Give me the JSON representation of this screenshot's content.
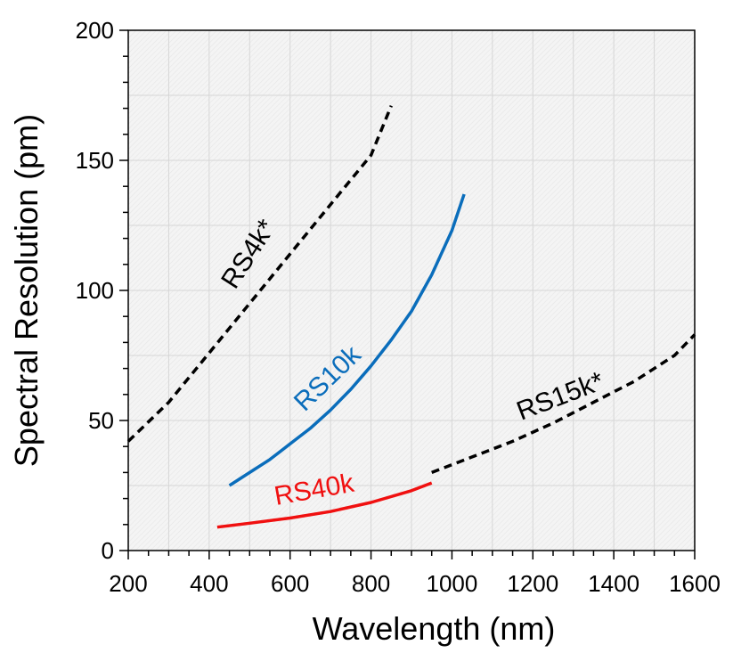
{
  "chart_data": {
    "type": "line",
    "title": "",
    "xlabel": "Wavelength (nm)",
    "ylabel": "Spectral Resolution (pm)",
    "xlim": [
      200,
      1600
    ],
    "ylim": [
      0,
      200
    ],
    "xticks": [
      200,
      400,
      600,
      800,
      1000,
      1200,
      1400,
      1600
    ],
    "xtick_labels": [
      "200",
      "400",
      "600",
      "800",
      "1000",
      "1200",
      "1400",
      "1600"
    ],
    "yticks": [
      0,
      50,
      100,
      150,
      200
    ],
    "ytick_labels": [
      "0",
      "50",
      "100",
      "150",
      "200"
    ],
    "grid": true,
    "legend": "none",
    "plot_background": "#f4f4f4",
    "series": [
      {
        "name": "RS4k*",
        "color": "#000000",
        "dashed": true,
        "x": [
          200,
          300,
          400,
          500,
          600,
          700,
          800,
          850
        ],
        "y": [
          42,
          57,
          76,
          95,
          114,
          133,
          152,
          171
        ]
      },
      {
        "name": "RS10k",
        "color": "#0a6dbb",
        "dashed": false,
        "x": [
          450,
          500,
          550,
          600,
          650,
          700,
          750,
          800,
          850,
          900,
          950,
          1000,
          1030
        ],
        "y": [
          25,
          30,
          35,
          41,
          47,
          54,
          62,
          71,
          81,
          92,
          106,
          123,
          137
        ]
      },
      {
        "name": "RS40k",
        "color": "#f01010",
        "dashed": false,
        "x": [
          420,
          500,
          600,
          700,
          800,
          900,
          950
        ],
        "y": [
          9,
          10.5,
          12.5,
          15,
          18.5,
          23,
          26
        ]
      },
      {
        "name": "RS15k*",
        "color": "#000000",
        "dashed": true,
        "x": [
          950,
          1050,
          1150,
          1250,
          1350,
          1450,
          1550,
          1600
        ],
        "y": [
          30,
          36,
          42,
          49,
          57,
          65,
          75,
          83
        ]
      }
    ]
  }
}
